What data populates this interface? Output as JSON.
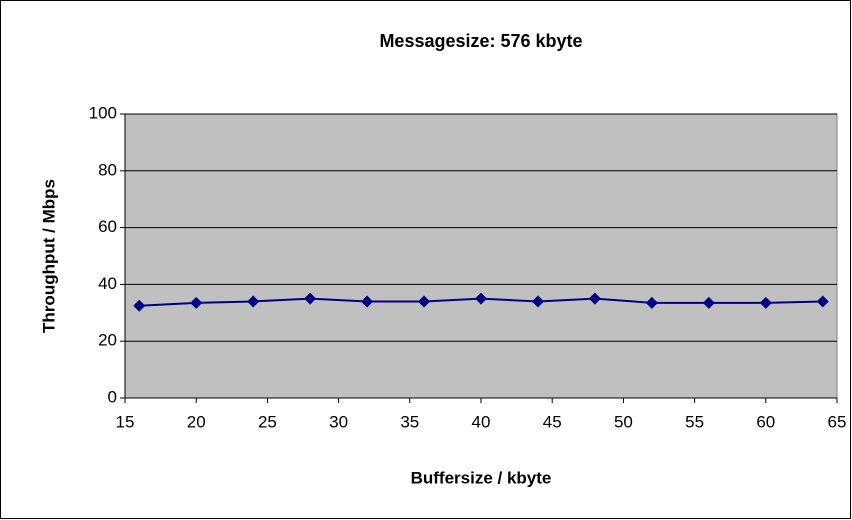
{
  "chart_data": {
    "type": "line",
    "title": "Messagesize: 576 kbyte",
    "x_label": "Buffersize / kbyte",
    "y_label": "Throughput / Mbps",
    "x": [
      16,
      20,
      24,
      28,
      32,
      36,
      40,
      44,
      48,
      52,
      56,
      60,
      64
    ],
    "series": [
      {
        "name": "Throughput",
        "color": "#000080",
        "values": [
          32.5,
          33.5,
          34,
          35,
          34,
          34,
          35,
          34,
          35,
          33.5,
          33.5,
          33.5,
          34
        ]
      }
    ],
    "xlim": [
      15,
      65
    ],
    "xticks": [
      15,
      20,
      25,
      30,
      35,
      40,
      45,
      50,
      55,
      60,
      65
    ],
    "ylim": [
      0,
      100
    ],
    "yticks": [
      0,
      20,
      40,
      60,
      80,
      100
    ],
    "grid": true,
    "plot_background": "#c0c0c0"
  }
}
